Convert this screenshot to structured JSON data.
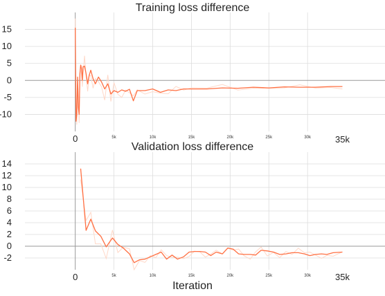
{
  "chart_data": [
    {
      "type": "line",
      "title": "Training loss difference",
      "xlabel": "",
      "ylabel": "",
      "xlim": [
        -6500,
        40000
      ],
      "ylim": [
        -15,
        20
      ],
      "yticks": [
        15,
        10,
        5,
        0,
        -5,
        -10
      ],
      "ytick_labels": [
        "15",
        "10",
        "5",
        "0",
        "-5",
        "-10"
      ],
      "xticks": [
        0,
        5000,
        10000,
        15000,
        20000,
        25000,
        30000
      ],
      "xtick_labels": [
        "0",
        "5k",
        "10k",
        "15k",
        "20k",
        "25k",
        "30k"
      ],
      "x_end_label": "35k",
      "grid": true,
      "colors": {
        "smoothed": "#ff7043",
        "raw": "#ffd8c8",
        "grid": "#dddddd",
        "zero_line": "#999999"
      },
      "series": [
        {
          "x": [
            0,
            100,
            200,
            300,
            400,
            500,
            600,
            700,
            800,
            900,
            1000,
            1200,
            1400,
            1600,
            1800,
            2000,
            2300,
            2600,
            3000,
            3400,
            3800,
            4200,
            4600,
            5000,
            5500,
            6000,
            6500,
            7000,
            7500,
            8000,
            9000,
            10000,
            11000,
            12000,
            13000,
            14000,
            15000,
            17000,
            19000,
            21000,
            23000,
            25000,
            27000,
            29000,
            31000,
            33000,
            34500
          ],
          "y": [
            15.5,
            -12.0,
            -10.0,
            1.0,
            -8.0,
            -10.0,
            2.0,
            4.5,
            3.5,
            0.0,
            4.0,
            4.2,
            2.0,
            -1.0,
            1.5,
            3.0,
            0.5,
            -1.0,
            1.0,
            -0.5,
            -2.5,
            -1.0,
            -4.0,
            -3.0,
            -3.5,
            -2.8,
            -3.2,
            -2.6,
            -6.0,
            -3.0,
            -3.0,
            -2.5,
            -3.5,
            -2.8,
            -3.0,
            -2.5,
            -2.5,
            -2.5,
            -2.2,
            -2.3,
            -2.0,
            -2.2,
            -1.9,
            -2.0,
            -2.0,
            -1.8,
            -1.8
          ]
        }
      ]
    },
    {
      "type": "line",
      "title": "Validation loss difference",
      "xlabel": "Iteration",
      "ylabel": "",
      "xlim": [
        -6500,
        40000
      ],
      "ylim": [
        -4,
        16
      ],
      "yticks": [
        14,
        12,
        10,
        8,
        6,
        4,
        2,
        0,
        -2
      ],
      "ytick_labels": [
        "14",
        "12",
        "10",
        "8",
        "6",
        "4",
        "2",
        "0",
        "-2"
      ],
      "xticks": [
        0,
        5000,
        10000,
        15000,
        20000,
        25000,
        30000
      ],
      "xtick_labels": [
        "0",
        "5k",
        "10k",
        "15k",
        "20k",
        "25k",
        "30k"
      ],
      "x_end_label": "35k",
      "grid": true,
      "colors": {
        "smoothed": "#ff7043",
        "raw": "#ffd8c8",
        "grid": "#dddddd",
        "zero_line": "#999999"
      },
      "series": [
        {
          "x": [
            700,
            1400,
            2000,
            2600,
            3300,
            4000,
            4800,
            5500,
            6200,
            7000,
            7600,
            8300,
            9000,
            9700,
            10400,
            11100,
            11800,
            12500,
            13200,
            14000,
            14700,
            15400,
            16100,
            16800,
            17500,
            18200,
            19000,
            19700,
            20400,
            21100,
            21800,
            22600,
            23300,
            24000,
            24800,
            25600,
            26400,
            27200,
            28000,
            28800,
            29600,
            30300,
            31000,
            31800,
            32500,
            33300,
            34500
          ],
          "y": [
            13.2,
            2.7,
            4.6,
            2.6,
            1.7,
            -0.1,
            1.4,
            0.3,
            -0.3,
            -1.3,
            -2.8,
            -2.3,
            -2.2,
            -1.8,
            -1.4,
            -1.0,
            -2.2,
            -1.5,
            -2.2,
            -1.8,
            -1.0,
            -0.9,
            -0.9,
            -1.0,
            -1.6,
            -1.0,
            -1.3,
            -0.3,
            -0.5,
            -1.3,
            -1.4,
            -1.4,
            -1.5,
            -0.7,
            -0.8,
            -1.0,
            -1.4,
            -1.3,
            -1.1,
            -1.1,
            -1.3,
            -1.6,
            -1.4,
            -1.3,
            -1.4,
            -1.1,
            -1.0
          ]
        }
      ]
    }
  ]
}
